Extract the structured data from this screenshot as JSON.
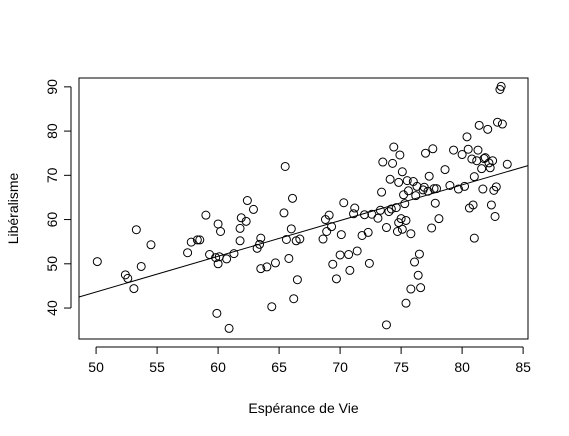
{
  "chart_data": {
    "type": "scatter",
    "xlabel": "Espérance de Vie",
    "ylabel": "Libéralisme",
    "xlim": [
      48.6,
      85.4
    ],
    "ylim": [
      33,
      92
    ],
    "xticks": [
      50,
      55,
      60,
      65,
      70,
      75,
      80,
      85
    ],
    "yticks": [
      40,
      50,
      60,
      70,
      80,
      90
    ],
    "regression_line": {
      "x": [
        48.6,
        85.4
      ],
      "y": [
        42.5,
        72.2
      ]
    },
    "points": [
      [
        50.1,
        50.5
      ],
      [
        52.4,
        47.5
      ],
      [
        52.6,
        46.7
      ],
      [
        53.1,
        44.4
      ],
      [
        53.3,
        57.7
      ],
      [
        53.7,
        49.4
      ],
      [
        54.5,
        54.3
      ],
      [
        57.5,
        52.5
      ],
      [
        57.8,
        54.9
      ],
      [
        58.3,
        55.4
      ],
      [
        58.5,
        55.4
      ],
      [
        59.0,
        61.0
      ],
      [
        59.3,
        52.1
      ],
      [
        59.8,
        51.4
      ],
      [
        59.9,
        38.8
      ],
      [
        60.0,
        50.0
      ],
      [
        60.0,
        59.0
      ],
      [
        60.1,
        51.6
      ],
      [
        60.2,
        57.3
      ],
      [
        60.7,
        51.1
      ],
      [
        60.9,
        35.4
      ],
      [
        61.3,
        52.3
      ],
      [
        61.8,
        55.2
      ],
      [
        61.8,
        58.0
      ],
      [
        61.9,
        60.4
      ],
      [
        62.3,
        59.6
      ],
      [
        62.4,
        64.3
      ],
      [
        62.9,
        62.3
      ],
      [
        63.2,
        53.5
      ],
      [
        63.4,
        54.4
      ],
      [
        63.5,
        55.8
      ],
      [
        63.5,
        48.9
      ],
      [
        64.0,
        49.3
      ],
      [
        64.4,
        40.3
      ],
      [
        64.7,
        50.2
      ],
      [
        65.4,
        61.5
      ],
      [
        65.5,
        72.0
      ],
      [
        65.6,
        55.5
      ],
      [
        65.8,
        51.2
      ],
      [
        66.0,
        57.9
      ],
      [
        66.1,
        64.8
      ],
      [
        66.2,
        42.1
      ],
      [
        66.4,
        55.2
      ],
      [
        66.5,
        46.4
      ],
      [
        66.7,
        55.6
      ],
      [
        68.6,
        55.6
      ],
      [
        68.8,
        60.0
      ],
      [
        68.9,
        57.3
      ],
      [
        69.1,
        61.0
      ],
      [
        69.3,
        58.4
      ],
      [
        69.4,
        49.9
      ],
      [
        69.7,
        46.6
      ],
      [
        70.0,
        52.0
      ],
      [
        70.1,
        56.6
      ],
      [
        70.3,
        63.8
      ],
      [
        70.7,
        52.1
      ],
      [
        70.8,
        48.5
      ],
      [
        71.1,
        61.3
      ],
      [
        71.2,
        62.6
      ],
      [
        71.4,
        52.9
      ],
      [
        71.8,
        56.4
      ],
      [
        72.0,
        61.1
      ],
      [
        72.3,
        57.1
      ],
      [
        72.4,
        50.1
      ],
      [
        72.6,
        61.2
      ],
      [
        73.1,
        60.3
      ],
      [
        73.3,
        62.1
      ],
      [
        73.4,
        66.2
      ],
      [
        73.5,
        73.0
      ],
      [
        73.8,
        36.2
      ],
      [
        73.8,
        58.2
      ],
      [
        74.0,
        61.8
      ],
      [
        74.1,
        69.1
      ],
      [
        74.2,
        62.4
      ],
      [
        74.3,
        72.7
      ],
      [
        74.4,
        76.4
      ],
      [
        74.6,
        62.7
      ],
      [
        74.7,
        57.3
      ],
      [
        74.8,
        59.3
      ],
      [
        74.8,
        68.4
      ],
      [
        74.9,
        74.6
      ],
      [
        75.0,
        60.2
      ],
      [
        75.1,
        57.8
      ],
      [
        75.1,
        70.8
      ],
      [
        75.2,
        65.6
      ],
      [
        75.3,
        63.6
      ],
      [
        75.4,
        41.1
      ],
      [
        75.4,
        59.8
      ],
      [
        75.5,
        68.8
      ],
      [
        75.6,
        66.5
      ],
      [
        75.8,
        56.8
      ],
      [
        75.8,
        44.3
      ],
      [
        76.0,
        68.6
      ],
      [
        76.1,
        50.4
      ],
      [
        76.2,
        65.4
      ],
      [
        76.3,
        67.5
      ],
      [
        76.4,
        47.4
      ],
      [
        76.5,
        52.2
      ],
      [
        76.6,
        44.6
      ],
      [
        76.8,
        66.7
      ],
      [
        76.9,
        67.3
      ],
      [
        77.0,
        75.0
      ],
      [
        77.2,
        66.4
      ],
      [
        77.3,
        69.8
      ],
      [
        77.5,
        58.1
      ],
      [
        77.6,
        76.0
      ],
      [
        77.7,
        67.0
      ],
      [
        77.8,
        63.7
      ],
      [
        77.9,
        67.0
      ],
      [
        78.1,
        60.2
      ],
      [
        78.6,
        71.3
      ],
      [
        79.0,
        67.7
      ],
      [
        79.3,
        75.7
      ],
      [
        79.7,
        66.9
      ],
      [
        80.0,
        74.7
      ],
      [
        80.2,
        67.5
      ],
      [
        80.4,
        78.7
      ],
      [
        80.5,
        75.9
      ],
      [
        80.6,
        62.6
      ],
      [
        80.8,
        73.7
      ],
      [
        80.9,
        63.3
      ],
      [
        81.0,
        55.8
      ],
      [
        81.0,
        69.7
      ],
      [
        81.2,
        73.3
      ],
      [
        81.3,
        75.7
      ],
      [
        81.4,
        81.3
      ],
      [
        81.6,
        71.5
      ],
      [
        81.7,
        66.9
      ],
      [
        81.8,
        73.8
      ],
      [
        81.9,
        74.0
      ],
      [
        82.1,
        80.4
      ],
      [
        82.2,
        72.8
      ],
      [
        82.3,
        71.7
      ],
      [
        82.4,
        63.3
      ],
      [
        82.5,
        73.3
      ],
      [
        82.6,
        66.6
      ],
      [
        82.7,
        60.7
      ],
      [
        82.8,
        67.4
      ],
      [
        82.9,
        82.0
      ],
      [
        83.1,
        89.4
      ],
      [
        83.2,
        90.1
      ],
      [
        83.3,
        81.6
      ],
      [
        83.7,
        72.5
      ]
    ]
  }
}
